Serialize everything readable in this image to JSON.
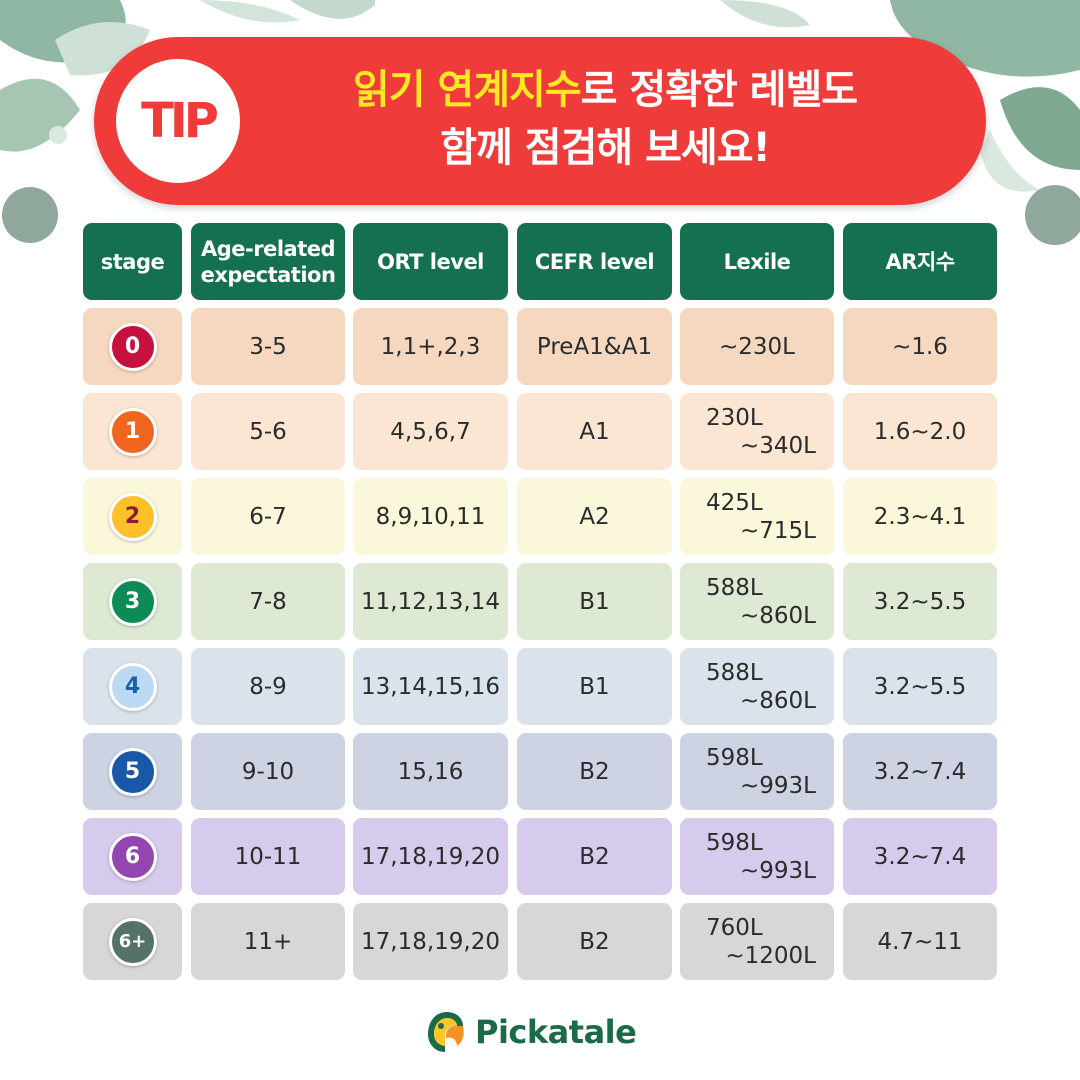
{
  "banner": {
    "tip_label": "TIP",
    "headline_highlight": "읽기 연계지수",
    "headline_rest": "로 정확한 레벨도",
    "headline_line2": "함께 점검해 보세요!"
  },
  "table": {
    "headers": [
      "stage",
      "Age-related expectation",
      "ORT level",
      "CEFR level",
      "Lexile",
      "AR지수"
    ],
    "rows": [
      {
        "stage": "0",
        "age": "3-5",
        "ort": "1,1+,2,3",
        "cefr": "PreA1&A1",
        "lexile_from": "~230L",
        "lexile_to": "",
        "ar": "~1.6",
        "badge_color": "#c8103e",
        "badge_text_color": "#ffffff",
        "row_color": "#f6d8c1"
      },
      {
        "stage": "1",
        "age": "5-6",
        "ort": "4,5,6,7",
        "cefr": "A1",
        "lexile_from": "230L",
        "lexile_to": "~340L",
        "ar": "1.6~2.0",
        "badge_color": "#f0661e",
        "badge_text_color": "#ffffff",
        "row_color": "#fae6d2"
      },
      {
        "stage": "2",
        "age": "6-7",
        "ort": "8,9,10,11",
        "cefr": "A2",
        "lexile_from": "425L",
        "lexile_to": "~715L",
        "ar": "2.3~4.1",
        "badge_color": "#fcc02a",
        "badge_text_color": "#8b1d2c",
        "row_color": "#fbf7da"
      },
      {
        "stage": "3",
        "age": "7-8",
        "ort": "11,12,13,14",
        "cefr": "B1",
        "lexile_from": "588L",
        "lexile_to": "~860L",
        "ar": "3.2~5.5",
        "badge_color": "#0e8a56",
        "badge_text_color": "#ffffff",
        "row_color": "#dde9d2"
      },
      {
        "stage": "4",
        "age": "8-9",
        "ort": "13,14,15,16",
        "cefr": "B1",
        "lexile_from": "588L",
        "lexile_to": "~860L",
        "ar": "3.2~5.5",
        "badge_color": "#bcdaf4",
        "badge_text_color": "#1c5fa8",
        "row_color": "#dae3ec"
      },
      {
        "stage": "5",
        "age": "9-10",
        "ort": "15,16",
        "cefr": "B2",
        "lexile_from": "598L",
        "lexile_to": "~993L",
        "ar": "3.2~7.4",
        "badge_color": "#1759a8",
        "badge_text_color": "#ffffff",
        "row_color": "#cdd3e2"
      },
      {
        "stage": "6",
        "age": "10-11",
        "ort": "17,18,19,20",
        "cefr": "B2",
        "lexile_from": "598L",
        "lexile_to": "~993L",
        "ar": "3.2~7.4",
        "badge_color": "#9446b0",
        "badge_text_color": "#ffffff",
        "row_color": "#d6cbec"
      },
      {
        "stage": "6+",
        "age": "11+",
        "ort": "17,18,19,20",
        "cefr": "B2",
        "lexile_from": "760L",
        "lexile_to": "~1200L",
        "ar": "4.7~11",
        "badge_color": "#557266",
        "badge_text_color": "#ffffff",
        "row_color": "#d9d7d5"
      }
    ]
  },
  "brand": {
    "name": "Pickatale",
    "color": "#1a6b48",
    "accent": "#157050",
    "banner_color": "#ef3c3b",
    "highlight": "#ffe923"
  }
}
